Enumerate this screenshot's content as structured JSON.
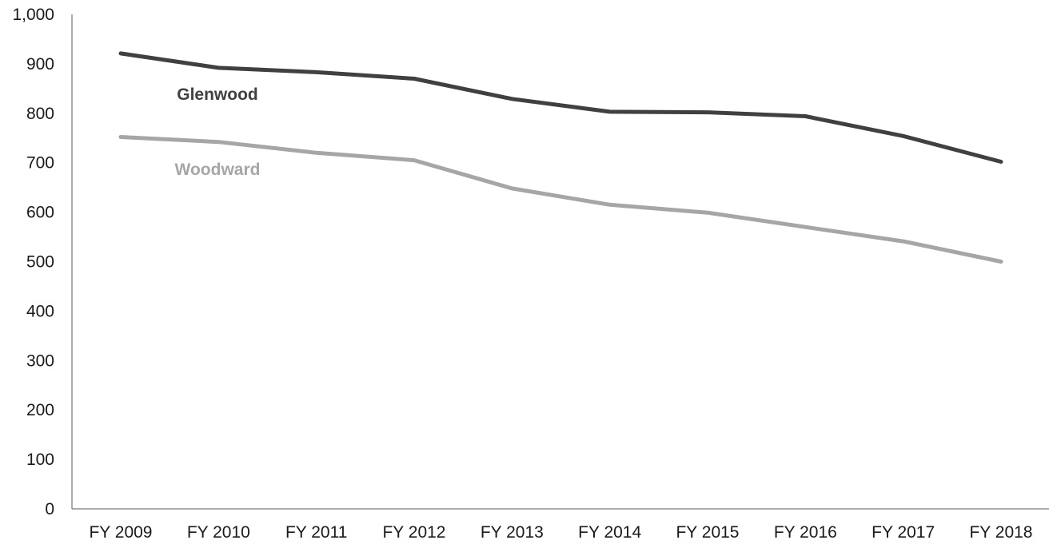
{
  "chart_data": {
    "type": "line",
    "title": "",
    "xlabel": "",
    "ylabel": "",
    "categories": [
      "FY 2009",
      "FY 2010",
      "FY 2011",
      "FY 2012",
      "FY 2013",
      "FY 2014",
      "FY 2015",
      "FY 2016",
      "FY 2017",
      "FY 2018"
    ],
    "yticks": [
      "0",
      "100",
      "200",
      "300",
      "400",
      "500",
      "600",
      "700",
      "800",
      "900",
      "1,000"
    ],
    "ylim": [
      0,
      1000
    ],
    "grid": false,
    "legend": "inline labels",
    "series": [
      {
        "name": "Glenwood",
        "color": "#404040",
        "values": [
          921,
          892,
          883,
          870,
          829,
          803,
          802,
          794,
          754,
          702
        ]
      },
      {
        "name": "Woodward",
        "color": "#a6a6a6",
        "values": [
          752,
          742,
          720,
          705,
          648,
          615,
          599,
          570,
          541,
          500
        ]
      }
    ]
  }
}
